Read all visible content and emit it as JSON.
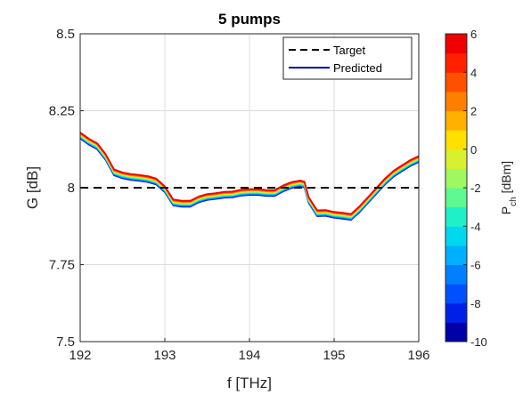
{
  "chart_data": {
    "type": "line",
    "title": "5 pumps",
    "xlabel": "f  [THz]",
    "ylabel": "G  [dB]",
    "xlim": [
      192,
      196
    ],
    "ylim": [
      7.5,
      8.5
    ],
    "xticks": [
      "192",
      "193",
      "194",
      "195",
      "196"
    ],
    "yticks": [
      "7.5",
      "7.75",
      "8",
      "8.25",
      "8.5"
    ],
    "grid": true,
    "legend_position": "top-right",
    "target": {
      "name": "Target",
      "value": 8.0,
      "color": "#000000",
      "style": "dashed"
    },
    "series": [
      {
        "name": "Predicted",
        "color": "#0000a8",
        "x": [
          192.0,
          192.1,
          192.2,
          192.3,
          192.4,
          192.5,
          192.6,
          192.7,
          192.8,
          192.9,
          193.0,
          193.1,
          193.2,
          193.3,
          193.4,
          193.5,
          193.6,
          193.7,
          193.8,
          193.9,
          194.0,
          194.1,
          194.2,
          194.3,
          194.4,
          194.5,
          194.6,
          194.65,
          194.7,
          194.8,
          194.9,
          195.0,
          195.1,
          195.2,
          195.3,
          195.4,
          195.5,
          195.6,
          195.7,
          195.8,
          195.9,
          196.0
        ],
        "y": [
          8.17,
          8.15,
          8.135,
          8.1,
          8.05,
          8.04,
          8.035,
          8.032,
          8.028,
          8.02,
          7.995,
          7.952,
          7.948,
          7.948,
          7.962,
          7.97,
          7.973,
          7.977,
          7.978,
          7.984,
          7.986,
          7.986,
          7.983,
          7.983,
          7.998,
          8.009,
          8.014,
          8.01,
          7.96,
          7.917,
          7.918,
          7.912,
          7.909,
          7.905,
          7.93,
          7.96,
          7.99,
          8.02,
          8.045,
          8.063,
          8.08,
          8.093
        ]
      }
    ],
    "colorbar": {
      "label_main": "P",
      "label_sub": "ch",
      "label_unit": " [dBm]",
      "min": -10,
      "max": 6,
      "ticks": [
        "-10",
        "-8",
        "-6",
        "-4",
        "-2",
        "0",
        "2",
        "4",
        "6"
      ],
      "colors": [
        "#0000a8",
        "#0020e8",
        "#0050ff",
        "#0080ff",
        "#00b0ff",
        "#00d8f0",
        "#20f0c8",
        "#60f890",
        "#a0f860",
        "#d8f030",
        "#ffe000",
        "#ffb000",
        "#ff8000",
        "#ff5000",
        "#ff2000",
        "#f00000"
      ]
    }
  }
}
